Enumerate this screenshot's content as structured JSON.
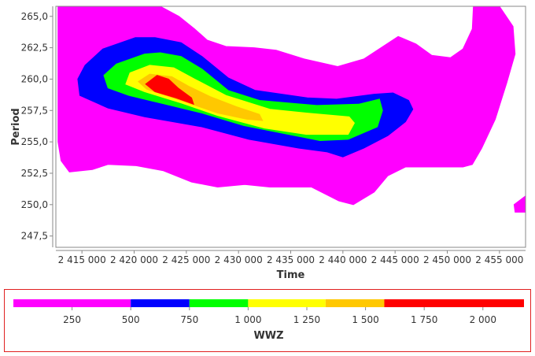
{
  "chart_data": {
    "type": "heatmap",
    "title": "",
    "xlabel": "Time",
    "ylabel": "Period",
    "xlim": [
      2412500,
      2457500
    ],
    "ylim": [
      246.6,
      265.8
    ],
    "x_ticks": [
      2415000,
      2420000,
      2425000,
      2430000,
      2435000,
      2440000,
      2445000,
      2450000,
      2455000
    ],
    "x_tick_labels": [
      "2 415 000",
      "2 420 000",
      "2 425 000",
      "2 430 000",
      "2 435 000",
      "2 440 000",
      "2 445 000",
      "2 450 000",
      "2 455 000"
    ],
    "y_ticks": [
      247.5,
      250.0,
      252.5,
      255.0,
      257.5,
      260.0,
      262.5,
      265.0
    ],
    "y_tick_labels": [
      "247,5",
      "250,0",
      "252,5",
      "255,0",
      "257,5",
      "260,0",
      "262,5",
      "265,0"
    ],
    "grid": false,
    "legend": {
      "title": "WWZ",
      "placement": "bottom",
      "range": [
        0,
        2175
      ],
      "ticks": [
        250,
        500,
        750,
        1000,
        1250,
        1500,
        1750,
        2000
      ],
      "tick_labels": [
        "250",
        "500",
        "750",
        "1 000",
        "1 250",
        "1 500",
        "1 750",
        "2 000"
      ],
      "bands": [
        {
          "min": 0,
          "max": 500,
          "color": "#ff00ff"
        },
        {
          "min": 500,
          "max": 750,
          "color": "#0000ff"
        },
        {
          "min": 750,
          "max": 1000,
          "color": "#00ff00"
        },
        {
          "min": 1000,
          "max": 1330,
          "color": "#ffff00"
        },
        {
          "min": 1330,
          "max": 1580,
          "color": "#ffc800"
        },
        {
          "min": 1580,
          "max": 2175,
          "color": "#ff0000"
        }
      ]
    },
    "contours": [
      {
        "level": "magenta",
        "color": "#ff00ff",
        "points": [
          [
            2412700,
            265.8
          ],
          [
            2422500,
            265.8
          ],
          [
            2424300,
            265.0
          ],
          [
            2425800,
            264.0
          ],
          [
            2427000,
            263.1
          ],
          [
            2428800,
            262.6
          ],
          [
            2431500,
            262.5
          ],
          [
            2433600,
            262.3
          ],
          [
            2436300,
            261.6
          ],
          [
            2439500,
            261.0
          ],
          [
            2442000,
            261.6
          ],
          [
            2445300,
            263.4
          ],
          [
            2447000,
            262.8
          ],
          [
            2448500,
            261.9
          ],
          [
            2450300,
            261.7
          ],
          [
            2451500,
            262.4
          ],
          [
            2452400,
            264.0
          ],
          [
            2452500,
            265.8
          ],
          [
            2455000,
            265.8
          ],
          [
            2456300,
            264.2
          ],
          [
            2456500,
            262.0
          ],
          [
            2455700,
            259.7
          ],
          [
            2454600,
            256.8
          ],
          [
            2453300,
            254.5
          ],
          [
            2452400,
            253.2
          ],
          [
            2451500,
            253.0
          ],
          [
            2446000,
            253.0
          ],
          [
            2444300,
            252.3
          ],
          [
            2443000,
            251.0
          ],
          [
            2441000,
            250.0
          ],
          [
            2439600,
            250.3
          ],
          [
            2437000,
            251.4
          ],
          [
            2433000,
            251.4
          ],
          [
            2430600,
            251.6
          ],
          [
            2428000,
            251.4
          ],
          [
            2425500,
            251.8
          ],
          [
            2422800,
            252.7
          ],
          [
            2420200,
            253.1
          ],
          [
            2417500,
            253.2
          ],
          [
            2416000,
            252.8
          ],
          [
            2413800,
            252.6
          ],
          [
            2413000,
            253.5
          ],
          [
            2412700,
            255.0
          ]
        ]
      },
      {
        "level": "magenta-corner",
        "color": "#ff00ff",
        "points": [
          [
            2456400,
            250.0
          ],
          [
            2457500,
            250.7
          ],
          [
            2457500,
            249.4
          ],
          [
            2456500,
            249.4
          ]
        ]
      },
      {
        "level": "blue",
        "color": "#0000ff",
        "points": [
          [
            2420100,
            263.3
          ],
          [
            2417000,
            262.4
          ],
          [
            2415300,
            261.1
          ],
          [
            2414600,
            260.0
          ],
          [
            2414800,
            258.7
          ],
          [
            2417500,
            257.7
          ],
          [
            2421000,
            257.0
          ],
          [
            2426500,
            256.2
          ],
          [
            2431000,
            255.2
          ],
          [
            2435800,
            254.5
          ],
          [
            2438500,
            254.2
          ],
          [
            2440000,
            253.8
          ],
          [
            2442000,
            254.5
          ],
          [
            2444300,
            255.5
          ],
          [
            2446000,
            256.6
          ],
          [
            2446700,
            257.6
          ],
          [
            2446300,
            258.3
          ],
          [
            2444800,
            258.9
          ],
          [
            2443000,
            258.8
          ],
          [
            2439400,
            258.4
          ],
          [
            2436600,
            258.5
          ],
          [
            2431600,
            259.1
          ],
          [
            2429000,
            260.1
          ],
          [
            2426500,
            261.8
          ],
          [
            2424500,
            262.9
          ],
          [
            2422000,
            263.3
          ]
        ]
      },
      {
        "level": "green",
        "color": "#00ff00",
        "points": [
          [
            2421000,
            262.0
          ],
          [
            2418300,
            261.2
          ],
          [
            2417100,
            260.3
          ],
          [
            2417500,
            259.3
          ],
          [
            2419500,
            258.7
          ],
          [
            2423000,
            258.0
          ],
          [
            2426500,
            257.3
          ],
          [
            2430500,
            256.3
          ],
          [
            2434800,
            255.6
          ],
          [
            2437800,
            255.1
          ],
          [
            2440500,
            255.2
          ],
          [
            2443300,
            256.2
          ],
          [
            2443800,
            257.5
          ],
          [
            2443500,
            258.4
          ],
          [
            2441500,
            258.0
          ],
          [
            2437500,
            257.9
          ],
          [
            2432000,
            258.3
          ],
          [
            2429000,
            259.1
          ],
          [
            2426500,
            260.8
          ],
          [
            2424500,
            261.8
          ],
          [
            2422500,
            262.1
          ]
        ]
      },
      {
        "level": "yellow",
        "color": "#ffff00",
        "points": [
          [
            2421500,
            261.1
          ],
          [
            2419600,
            260.5
          ],
          [
            2419200,
            259.6
          ],
          [
            2421000,
            259.0
          ],
          [
            2424500,
            258.1
          ],
          [
            2428000,
            257.1
          ],
          [
            2432500,
            256.1
          ],
          [
            2436500,
            255.6
          ],
          [
            2440500,
            255.6
          ],
          [
            2441100,
            256.5
          ],
          [
            2440600,
            257.0
          ],
          [
            2436500,
            257.3
          ],
          [
            2433000,
            257.6
          ],
          [
            2428800,
            258.7
          ],
          [
            2425800,
            260.0
          ],
          [
            2423800,
            260.9
          ]
        ]
      },
      {
        "level": "orange",
        "color": "#ffc800",
        "points": [
          [
            2421500,
            260.4
          ],
          [
            2420400,
            259.8
          ],
          [
            2421200,
            259.2
          ],
          [
            2424500,
            258.3
          ],
          [
            2428000,
            257.3
          ],
          [
            2430800,
            256.8
          ],
          [
            2432300,
            256.7
          ],
          [
            2432000,
            257.2
          ],
          [
            2429800,
            257.8
          ],
          [
            2427300,
            258.6
          ],
          [
            2425300,
            259.4
          ],
          [
            2423600,
            260.2
          ]
        ]
      },
      {
        "level": "red",
        "color": "#ff0000",
        "points": [
          [
            2422200,
            260.3
          ],
          [
            2421100,
            259.6
          ],
          [
            2422000,
            259.0
          ],
          [
            2424000,
            258.5
          ],
          [
            2425700,
            258.0
          ],
          [
            2425500,
            258.5
          ],
          [
            2424200,
            259.3
          ],
          [
            2423300,
            260.0
          ]
        ]
      }
    ]
  }
}
